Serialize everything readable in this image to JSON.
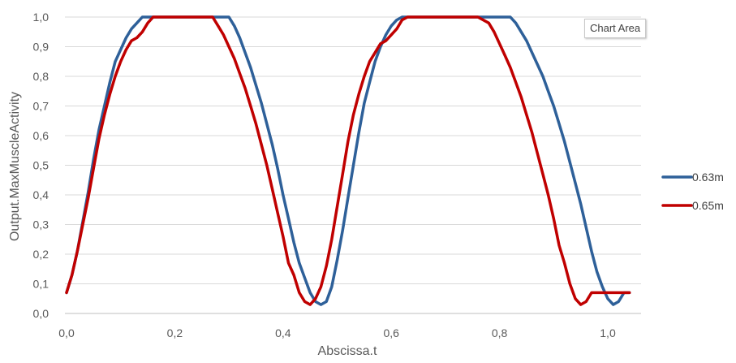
{
  "tooltip": {
    "text": "Chart Area"
  },
  "chart_data": {
    "type": "line",
    "title": "",
    "xlabel": "Abscissa.t",
    "ylabel": "Output.MaxMuscleActivity",
    "xlim": [
      0.0,
      1.04
    ],
    "ylim": [
      0.0,
      1.0
    ],
    "x_ticks": [
      "0,0",
      "0,2",
      "0,4",
      "0,6",
      "0,8",
      "1,0"
    ],
    "x_tick_values": [
      0.0,
      0.2,
      0.4,
      0.6,
      0.8,
      1.0
    ],
    "y_ticks": [
      "0,0",
      "0,1",
      "0,2",
      "0,3",
      "0,4",
      "0,5",
      "0,6",
      "0,7",
      "0,8",
      "0,9",
      "1,0"
    ],
    "y_tick_values": [
      0.0,
      0.1,
      0.2,
      0.3,
      0.4,
      0.5,
      0.6,
      0.7,
      0.8,
      0.9,
      1.0
    ],
    "grid": "horizontal",
    "legend_position": "right",
    "series": [
      {
        "name": "0.63m",
        "color": "#2E6099",
        "x": [
          0.0,
          0.01,
          0.02,
          0.03,
          0.04,
          0.05,
          0.06,
          0.07,
          0.08,
          0.09,
          0.1,
          0.11,
          0.12,
          0.13,
          0.14,
          0.15,
          0.16,
          0.17,
          0.18,
          0.2,
          0.22,
          0.24,
          0.26,
          0.28,
          0.3,
          0.31,
          0.32,
          0.33,
          0.34,
          0.35,
          0.36,
          0.37,
          0.38,
          0.39,
          0.4,
          0.41,
          0.42,
          0.43,
          0.44,
          0.45,
          0.46,
          0.47,
          0.48,
          0.49,
          0.5,
          0.51,
          0.52,
          0.53,
          0.54,
          0.55,
          0.56,
          0.57,
          0.58,
          0.59,
          0.6,
          0.61,
          0.62,
          0.63,
          0.64,
          0.65,
          0.66,
          0.67,
          0.68,
          0.69,
          0.7,
          0.72,
          0.74,
          0.76,
          0.78,
          0.8,
          0.82,
          0.83,
          0.84,
          0.85,
          0.86,
          0.87,
          0.88,
          0.89,
          0.9,
          0.91,
          0.92,
          0.93,
          0.94,
          0.95,
          0.96,
          0.97,
          0.98,
          0.99,
          1.0,
          1.01,
          1.02,
          1.03,
          1.04
        ],
        "y": [
          0.07,
          0.13,
          0.21,
          0.31,
          0.41,
          0.52,
          0.62,
          0.7,
          0.78,
          0.85,
          0.89,
          0.93,
          0.96,
          0.98,
          1.0,
          1.0,
          1.0,
          1.0,
          1.0,
          1.0,
          1.0,
          1.0,
          1.0,
          1.0,
          1.0,
          0.97,
          0.93,
          0.88,
          0.83,
          0.77,
          0.71,
          0.64,
          0.57,
          0.49,
          0.4,
          0.32,
          0.24,
          0.17,
          0.12,
          0.07,
          0.04,
          0.03,
          0.04,
          0.09,
          0.18,
          0.28,
          0.39,
          0.5,
          0.61,
          0.71,
          0.78,
          0.85,
          0.9,
          0.94,
          0.97,
          0.99,
          1.0,
          1.0,
          1.0,
          1.0,
          1.0,
          1.0,
          1.0,
          1.0,
          1.0,
          1.0,
          1.0,
          1.0,
          1.0,
          1.0,
          1.0,
          0.98,
          0.95,
          0.92,
          0.88,
          0.84,
          0.8,
          0.75,
          0.7,
          0.64,
          0.58,
          0.51,
          0.44,
          0.37,
          0.29,
          0.21,
          0.14,
          0.09,
          0.05,
          0.03,
          0.04,
          0.07,
          0.07
        ]
      },
      {
        "name": "0.65m",
        "color": "#C00000",
        "x": [
          0.0,
          0.01,
          0.02,
          0.03,
          0.04,
          0.05,
          0.06,
          0.07,
          0.08,
          0.09,
          0.1,
          0.11,
          0.12,
          0.13,
          0.14,
          0.15,
          0.16,
          0.17,
          0.18,
          0.19,
          0.2,
          0.22,
          0.24,
          0.26,
          0.27,
          0.28,
          0.29,
          0.3,
          0.31,
          0.32,
          0.33,
          0.34,
          0.35,
          0.36,
          0.37,
          0.38,
          0.39,
          0.4,
          0.41,
          0.42,
          0.43,
          0.44,
          0.45,
          0.46,
          0.47,
          0.48,
          0.49,
          0.5,
          0.51,
          0.52,
          0.53,
          0.54,
          0.55,
          0.56,
          0.57,
          0.58,
          0.59,
          0.6,
          0.61,
          0.62,
          0.63,
          0.64,
          0.65,
          0.66,
          0.67,
          0.68,
          0.69,
          0.7,
          0.72,
          0.74,
          0.76,
          0.78,
          0.79,
          0.8,
          0.81,
          0.82,
          0.83,
          0.84,
          0.85,
          0.86,
          0.87,
          0.88,
          0.89,
          0.9,
          0.91,
          0.92,
          0.93,
          0.94,
          0.95,
          0.96,
          0.97,
          0.98,
          0.99,
          1.0,
          1.01,
          1.02,
          1.03,
          1.04
        ],
        "y": [
          0.07,
          0.13,
          0.21,
          0.3,
          0.39,
          0.49,
          0.59,
          0.67,
          0.74,
          0.8,
          0.85,
          0.89,
          0.92,
          0.93,
          0.95,
          0.98,
          1.0,
          1.0,
          1.0,
          1.0,
          1.0,
          1.0,
          1.0,
          1.0,
          1.0,
          0.97,
          0.94,
          0.9,
          0.86,
          0.81,
          0.76,
          0.7,
          0.64,
          0.57,
          0.5,
          0.42,
          0.34,
          0.26,
          0.17,
          0.13,
          0.07,
          0.04,
          0.03,
          0.05,
          0.09,
          0.16,
          0.25,
          0.36,
          0.47,
          0.58,
          0.67,
          0.74,
          0.8,
          0.85,
          0.88,
          0.91,
          0.92,
          0.94,
          0.96,
          0.99,
          1.0,
          1.0,
          1.0,
          1.0,
          1.0,
          1.0,
          1.0,
          1.0,
          1.0,
          1.0,
          1.0,
          0.98,
          0.95,
          0.91,
          0.87,
          0.83,
          0.78,
          0.73,
          0.67,
          0.61,
          0.54,
          0.47,
          0.4,
          0.32,
          0.23,
          0.17,
          0.1,
          0.05,
          0.03,
          0.04,
          0.07,
          0.07,
          0.07,
          0.07,
          0.07,
          0.07,
          0.07,
          0.07
        ]
      }
    ]
  }
}
